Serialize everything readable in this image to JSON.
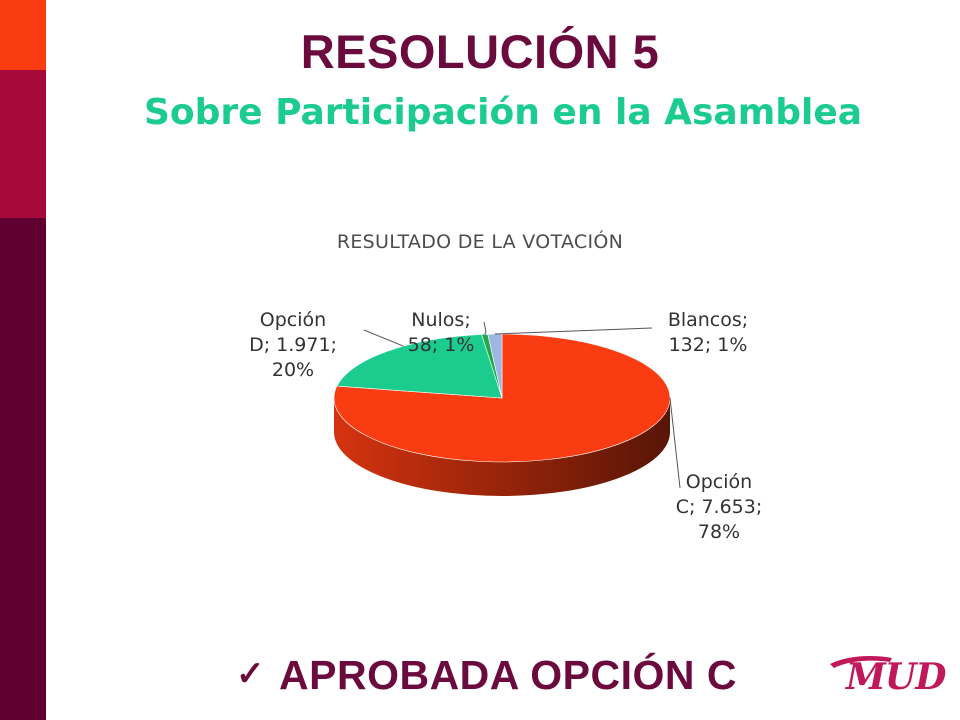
{
  "colors": {
    "band_top": "#fa3c12",
    "band_mid": "#a8093c",
    "band_bottom": "#5f0030",
    "title": "#6b0a3c",
    "subtitle": "#1ccc8f",
    "chart_title": "#4d4d4d",
    "label_text": "#333333",
    "footer": "#6b0a3c",
    "logo": "#c0185a"
  },
  "slide": {
    "title": "RESOLUCIÓN 5",
    "subtitle": "Sobre Participación en la Asamblea",
    "footer_check_icon": "check-icon",
    "footer_text": "APROBADA OPCIÓN C",
    "logo_text": "MUD"
  },
  "chart_data": {
    "type": "pie",
    "title": "RESULTADO DE LA VOTACIÓN",
    "style": "3d",
    "series": [
      {
        "name": "Opción C",
        "value": 7653,
        "value_label": "7.653",
        "percent": 78,
        "color": "#fa3c12",
        "label_lines": [
          "Opción",
          "C; 7.653;",
          "78%"
        ]
      },
      {
        "name": "Opción D",
        "value": 1971,
        "value_label": "1.971",
        "percent": 20,
        "color": "#1ccc8f",
        "label_lines": [
          "Opción",
          "D; 1.971;",
          "20%"
        ]
      },
      {
        "name": "Nulos",
        "value": 58,
        "value_label": "58",
        "percent": 1,
        "color": "#22a84a",
        "label_lines": [
          "Nulos;",
          "58; 1%"
        ]
      },
      {
        "name": "Blancos",
        "value": 132,
        "value_label": "132",
        "percent": 1,
        "color": "#9db7e0",
        "label_lines": [
          "Blancos;",
          "132; 1%"
        ]
      }
    ]
  }
}
